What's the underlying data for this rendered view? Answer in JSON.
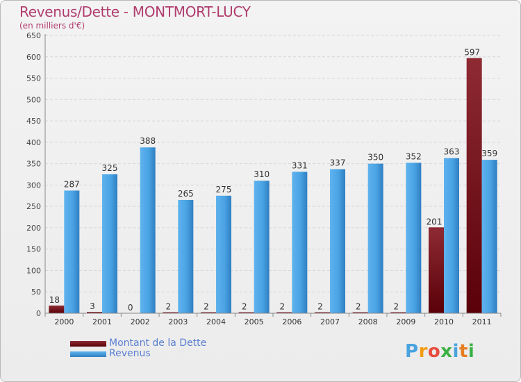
{
  "title": "Revenus/Dette - MONTMORT-LUCY",
  "subtitle": "(en milliers d'€)",
  "colors": {
    "dette": "#7a1018",
    "revenus": "#3d97dc",
    "title": "#b03c6e",
    "legend_text": "#5a7fd1"
  },
  "chart_data": {
    "type": "bar",
    "title": "Revenus/Dette - MONTMORT-LUCY",
    "ylabel": "(en milliers d'€)",
    "xlabel": "",
    "categories": [
      "2000",
      "2001",
      "2002",
      "2003",
      "2004",
      "2005",
      "2006",
      "2007",
      "2008",
      "2009",
      "2010",
      "2011"
    ],
    "series": [
      {
        "name": "Montant de la Dette",
        "values": [
          18,
          3,
          0,
          2,
          2,
          2,
          2,
          2,
          2,
          2,
          201,
          597
        ]
      },
      {
        "name": "Revenus",
        "values": [
          287,
          325,
          388,
          265,
          275,
          310,
          331,
          337,
          350,
          352,
          363,
          359
        ]
      }
    ],
    "ylim": [
      0,
      650
    ],
    "yticks": [
      0,
      50,
      100,
      150,
      200,
      250,
      300,
      350,
      400,
      450,
      500,
      550,
      600,
      650
    ],
    "grid": true,
    "legend_position": "bottom-left"
  },
  "legend": {
    "dette_label": "Montant de la Dette",
    "revenus_label": "Revenus"
  },
  "logo": {
    "letters": [
      "P",
      "r",
      "o",
      "x",
      "i",
      "t",
      "i"
    ],
    "letter_colors": [
      "#4aa3df",
      "#f39c12",
      "#e74c3c",
      "#3cb043",
      "#4aa3df",
      "#e67e22",
      "#3cb043"
    ]
  }
}
